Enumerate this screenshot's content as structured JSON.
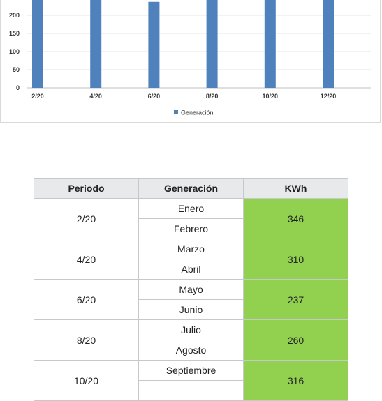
{
  "chart_data": {
    "type": "bar",
    "categories": [
      "2/20",
      "4/20",
      "6/20",
      "8/20",
      "10/20",
      "12/20"
    ],
    "series": [
      {
        "name": "Generación",
        "color": "#4f81bd",
        "values": [
          346,
          310,
          237,
          260,
          316,
          300
        ]
      }
    ],
    "y_ticks": [
      0,
      50,
      100,
      150,
      200
    ],
    "ylim": [
      0,
      200
    ],
    "grid": true,
    "legend": "bottom-center",
    "title": "",
    "xlabel": "",
    "ylabel": ""
  },
  "table": {
    "headers": [
      "Periodo",
      "Generación",
      "KWh"
    ],
    "groups": [
      {
        "periodo": "2/20",
        "months": [
          "Enero",
          "Febrero"
        ],
        "kwh": "346"
      },
      {
        "periodo": "4/20",
        "months": [
          "Marzo",
          "Abril"
        ],
        "kwh": "310"
      },
      {
        "periodo": "6/20",
        "months": [
          "Mayo",
          "Junio"
        ],
        "kwh": "237"
      },
      {
        "periodo": "8/20",
        "months": [
          "Julio",
          "Agosto"
        ],
        "kwh": "260"
      },
      {
        "periodo": "10/20",
        "months": [
          "Septiembre",
          ""
        ],
        "kwh": "316"
      }
    ],
    "kwh_color": "#92d050"
  }
}
